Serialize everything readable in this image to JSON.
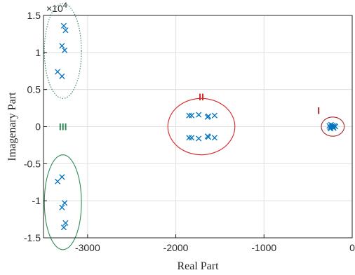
{
  "chart_data": {
    "type": "scatter",
    "title": "",
    "xlabel": "Real Part",
    "ylabel": "Imagenary Part",
    "xlim": [
      -3500,
      0
    ],
    "ylim": [
      -15000,
      15000
    ],
    "y_exponent_label": "×10",
    "y_exponent_power": "4",
    "x_ticks": [
      {
        "value": -3000,
        "label": "-3000"
      },
      {
        "value": -2000,
        "label": "-2000"
      },
      {
        "value": -1000,
        "label": "-1000"
      },
      {
        "value": 0,
        "label": "0"
      }
    ],
    "y_ticks": [
      {
        "value": -15000,
        "label": "-1.5"
      },
      {
        "value": -10000,
        "label": "-1"
      },
      {
        "value": -5000,
        "label": "-0.5"
      },
      {
        "value": 0,
        "label": "0"
      },
      {
        "value": 5000,
        "label": "0.5"
      },
      {
        "value": 10000,
        "label": "1"
      },
      {
        "value": 15000,
        "label": "1.5"
      }
    ],
    "grid": true,
    "marker": "x",
    "marker_color": "#0072BD",
    "series": [
      {
        "points": [
          [
            -3270,
            13600
          ],
          [
            -3250,
            13000
          ],
          [
            -3290,
            10900
          ],
          [
            -3260,
            10300
          ],
          [
            -3340,
            7400
          ],
          [
            -3290,
            6800
          ],
          [
            -3270,
            -13600
          ],
          [
            -3250,
            -13000
          ],
          [
            -3290,
            -10900
          ],
          [
            -3260,
            -10300
          ],
          [
            -3340,
            -7400
          ],
          [
            -3290,
            -6800
          ],
          [
            -1850,
            1500
          ],
          [
            -1820,
            1500
          ],
          [
            -1740,
            1600
          ],
          [
            -1640,
            1300
          ],
          [
            -1630,
            1400
          ],
          [
            -1560,
            1500
          ],
          [
            -1850,
            -1500
          ],
          [
            -1820,
            -1500
          ],
          [
            -1740,
            -1600
          ],
          [
            -1640,
            -1300
          ],
          [
            -1630,
            -1400
          ],
          [
            -1560,
            -1500
          ],
          [
            -240,
            250
          ],
          [
            -220,
            150
          ],
          [
            -200,
            100
          ],
          [
            -250,
            -100
          ],
          [
            -210,
            -200
          ],
          [
            -230,
            0
          ],
          [
            -190,
            0
          ],
          [
            -260,
            100
          ],
          [
            -215,
            -50
          ],
          [
            -245,
            -250
          ]
        ]
      }
    ],
    "regions": [
      {
        "label": "I",
        "color": "#A52A2A",
        "style": "solid",
        "cx": -220,
        "cy": 0,
        "rx": 130,
        "ry": 1300,
        "label_at": [
          -380,
          2200
        ]
      },
      {
        "label": "II",
        "color": "#D62728",
        "style": "solid",
        "cx": -1710,
        "cy": 0,
        "rx": 380,
        "ry": 3800,
        "label_at": [
          -1710,
          4000
        ]
      },
      {
        "label": "III",
        "color": "#2E8B57",
        "style": "dotted",
        "cx": -3280,
        "cy": 10200,
        "rx": 210,
        "ry": 6400,
        "label_at": null
      },
      {
        "label": "",
        "color": "#2E8B57",
        "style": "solid",
        "cx": -3280,
        "cy": -10200,
        "rx": 210,
        "ry": 6400,
        "label_at": null
      },
      {
        "label": "III",
        "color": "#2E8B57",
        "style": "label-only",
        "cx": null,
        "cy": null,
        "rx": null,
        "ry": null,
        "label_at": [
          -3280,
          0
        ]
      }
    ]
  }
}
